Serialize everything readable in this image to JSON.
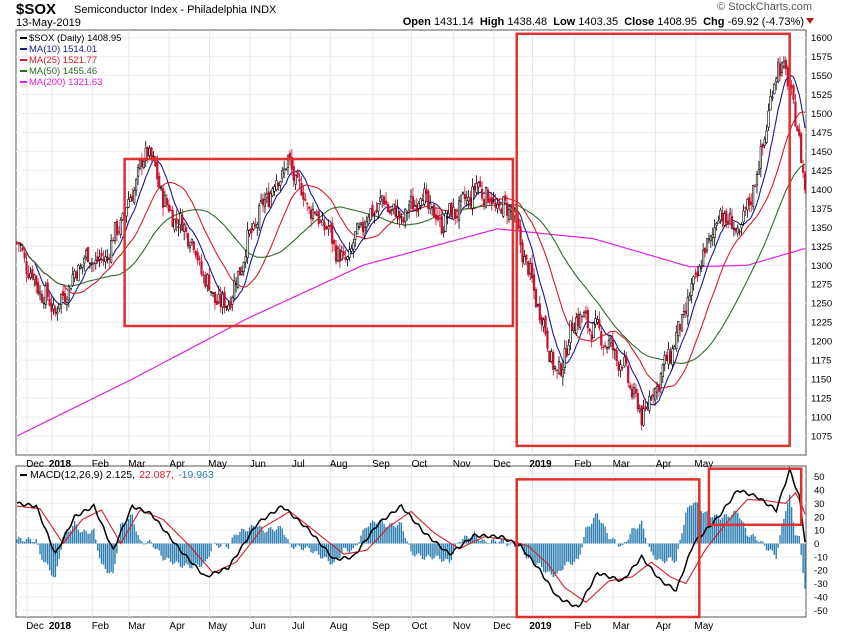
{
  "header": {
    "symbol": "$SOX",
    "description": "Semiconductor Index - Philadelphia INDX",
    "date": "13-May-2019",
    "brand": "© StockCharts.com",
    "open_label": "Open",
    "open": "1431.14",
    "high_label": "High",
    "high": "1438.48",
    "low_label": "Low",
    "low": "1403.35",
    "close_label": "Close",
    "close": "1408.95",
    "chg_label": "Chg",
    "chg": "-69.92 (-4.73%)"
  },
  "chart_data": [
    {
      "type": "candlestick",
      "title": "$SOX (Daily) 1408.95",
      "legend": [
        {
          "label": "$SOX (Daily) 1408.95",
          "color": "#000000"
        },
        {
          "label": "MA(10) 1514.01",
          "color": "#1a1a8c"
        },
        {
          "label": "MA(25) 1521.77",
          "color": "#d01f2a"
        },
        {
          "label": "MA(50) 1455.46",
          "color": "#2e6b2e"
        },
        {
          "label": "MA(200) 1321.63",
          "color": "#e020e0"
        }
      ],
      "ylim": [
        1050,
        1610
      ],
      "yticks": [
        1075,
        1100,
        1125,
        1150,
        1175,
        1200,
        1225,
        1250,
        1275,
        1300,
        1325,
        1350,
        1375,
        1400,
        1425,
        1450,
        1475,
        1500,
        1525,
        1550,
        1575,
        1600
      ],
      "months": [
        "Dec",
        "2018",
        "Feb",
        "Mar",
        "Apr",
        "May",
        "Jun",
        "Jul",
        "Aug",
        "Sep",
        "Oct",
        "Nov",
        "Dec",
        "2019",
        "Feb",
        "Mar",
        "Apr",
        "May"
      ],
      "price_anchors": [
        [
          0,
          1330
        ],
        [
          10,
          1275
        ],
        [
          20,
          1240
        ],
        [
          35,
          1310
        ],
        [
          45,
          1305
        ],
        [
          57,
          1375
        ],
        [
          68,
          1455
        ],
        [
          78,
          1375
        ],
        [
          90,
          1340
        ],
        [
          98,
          1280
        ],
        [
          106,
          1245
        ],
        [
          112,
          1262
        ],
        [
          120,
          1330
        ],
        [
          130,
          1390
        ],
        [
          141,
          1435
        ],
        [
          151,
          1380
        ],
        [
          162,
          1345
        ],
        [
          170,
          1300
        ],
        [
          180,
          1355
        ],
        [
          190,
          1385
        ],
        [
          200,
          1360
        ],
        [
          210,
          1395
        ],
        [
          220,
          1355
        ],
        [
          232,
          1380
        ],
        [
          240,
          1405
        ],
        [
          250,
          1375
        ],
        [
          257,
          1375
        ],
        [
          263,
          1320
        ],
        [
          272,
          1240
        ],
        [
          281,
          1150
        ],
        [
          291,
          1235
        ],
        [
          303,
          1210
        ],
        [
          315,
          1170
        ],
        [
          325,
          1100
        ],
        [
          335,
          1155
        ],
        [
          344,
          1210
        ],
        [
          356,
          1305
        ],
        [
          366,
          1370
        ],
        [
          376,
          1340
        ],
        [
          386,
          1430
        ],
        [
          396,
          1570
        ],
        [
          403,
          1530
        ],
        [
          408,
          1440
        ],
        [
          410,
          1408
        ]
      ],
      "ma_windows": [
        10,
        25,
        50
      ],
      "ma200_anchors": [
        [
          0,
          1075
        ],
        [
          60,
          1150
        ],
        [
          120,
          1230
        ],
        [
          180,
          1300
        ],
        [
          250,
          1348
        ],
        [
          300,
          1335
        ],
        [
          350,
          1298
        ],
        [
          380,
          1300
        ],
        [
          410,
          1322
        ]
      ],
      "highlight_boxes": [
        {
          "from_index": 56,
          "to_index": 258,
          "from_value": 1440,
          "to_value": 1220
        },
        {
          "from_index": 260,
          "to_index": 402,
          "from_value": 1605,
          "to_value": 1062
        }
      ]
    },
    {
      "type": "line+bar",
      "title": "MACD(12,26,9) 2.125, 22.087, -19.963",
      "legend": [
        {
          "label": "MACD(12,26,9) 2.125,",
          "color": "#000000"
        },
        {
          "label": "22.087,",
          "color": "#d01f2a"
        },
        {
          "label": "-19.963",
          "color": "#2f7fb0"
        }
      ],
      "ylim": [
        -55,
        58
      ],
      "yticks": [
        -50,
        -40,
        -30,
        -20,
        -10,
        0,
        10,
        20,
        30,
        40,
        50
      ],
      "months": [
        "Dec",
        "2018",
        "Feb",
        "Mar",
        "Apr",
        "May",
        "Jun",
        "Jul",
        "Aug",
        "Sep",
        "Oct",
        "Nov",
        "Dec",
        "2019",
        "Feb",
        "Mar",
        "Apr",
        "May"
      ],
      "macd_anchors": [
        [
          0,
          30
        ],
        [
          10,
          28
        ],
        [
          20,
          -8
        ],
        [
          30,
          20
        ],
        [
          40,
          28
        ],
        [
          50,
          -5
        ],
        [
          60,
          28
        ],
        [
          70,
          22
        ],
        [
          85,
          -5
        ],
        [
          98,
          -25
        ],
        [
          110,
          -18
        ],
        [
          125,
          15
        ],
        [
          138,
          28
        ],
        [
          152,
          10
        ],
        [
          165,
          -12
        ],
        [
          175,
          -10
        ],
        [
          188,
          15
        ],
        [
          200,
          28
        ],
        [
          212,
          8
        ],
        [
          225,
          -8
        ],
        [
          238,
          6
        ],
        [
          252,
          5
        ],
        [
          262,
          -2
        ],
        [
          272,
          -20
        ],
        [
          281,
          -40
        ],
        [
          292,
          -48
        ],
        [
          302,
          -22
        ],
        [
          315,
          -28
        ],
        [
          325,
          -10
        ],
        [
          335,
          -28
        ],
        [
          343,
          -35
        ],
        [
          352,
          0
        ],
        [
          365,
          20
        ],
        [
          375,
          40
        ],
        [
          385,
          35
        ],
        [
          395,
          25
        ],
        [
          402,
          55
        ],
        [
          407,
          35
        ],
        [
          410,
          2
        ]
      ],
      "signal_anchors": [
        [
          0,
          28
        ],
        [
          12,
          26
        ],
        [
          24,
          0
        ],
        [
          34,
          18
        ],
        [
          44,
          25
        ],
        [
          54,
          0
        ],
        [
          64,
          25
        ],
        [
          76,
          18
        ],
        [
          90,
          -2
        ],
        [
          102,
          -22
        ],
        [
          114,
          -14
        ],
        [
          128,
          12
        ],
        [
          142,
          24
        ],
        [
          156,
          8
        ],
        [
          170,
          -8
        ],
        [
          182,
          -5
        ],
        [
          193,
          12
        ],
        [
          205,
          24
        ],
        [
          217,
          8
        ],
        [
          230,
          -4
        ],
        [
          243,
          5
        ],
        [
          255,
          3
        ],
        [
          266,
          -2
        ],
        [
          276,
          -15
        ],
        [
          285,
          -33
        ],
        [
          296,
          -44
        ],
        [
          308,
          -28
        ],
        [
          320,
          -25
        ],
        [
          330,
          -14
        ],
        [
          340,
          -25
        ],
        [
          348,
          -30
        ],
        [
          358,
          -5
        ],
        [
          370,
          17
        ],
        [
          380,
          33
        ],
        [
          390,
          32
        ],
        [
          400,
          30
        ],
        [
          405,
          38
        ],
        [
          408,
          30
        ],
        [
          410,
          22
        ]
      ],
      "highlight_boxes": [
        {
          "from_index": 260,
          "to_index": 355,
          "from_value": 48,
          "to_value": -55
        },
        {
          "from_index": 360,
          "to_index": 408,
          "from_value": 56,
          "to_value": 14
        }
      ]
    }
  ]
}
